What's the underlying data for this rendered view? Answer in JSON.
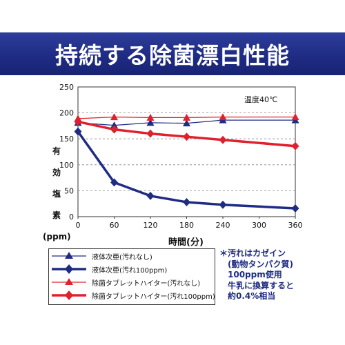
{
  "chart_data": {
    "type": "line",
    "title": "持続する除菌漂白性能",
    "xlabel": "時間(分)",
    "ylabel": "有効塩素(ppm)",
    "ylabel_lines": [
      "有",
      "効",
      "塩",
      "素",
      "(ppm)"
    ],
    "x": [
      0,
      60,
      120,
      180,
      240,
      300,
      360
    ],
    "xticks": [
      "0",
      "60",
      "120",
      "180",
      "240",
      "300",
      "360"
    ],
    "yticks": [
      "0",
      "50",
      "100",
      "150",
      "200",
      "250"
    ],
    "xlim": [
      0,
      360
    ],
    "ylim": [
      0,
      250
    ],
    "grid": "horizontal-dashed",
    "annotation": "温度40℃",
    "legend_position": "bottom-left",
    "series": [
      {
        "name": "液体次亜(汚れなし)",
        "color": "#1f2c84",
        "marker": "triangle",
        "line_width": "thin",
        "x": [
          0,
          60,
          120,
          180,
          240,
          360
        ],
        "values": [
          181,
          176,
          181,
          180,
          186,
          186
        ]
      },
      {
        "name": "液体次亜(汚れ100ppm)",
        "color": "#1f2c84",
        "marker": "diamond",
        "line_width": "thick",
        "x": [
          0,
          60,
          120,
          180,
          240,
          360
        ],
        "values": [
          164,
          66,
          40,
          28,
          23,
          16
        ]
      },
      {
        "name": "除菌タブレットハイター(汚れなし)",
        "color": "#e0202c",
        "marker": "triangle",
        "line_width": "thin",
        "x": [
          0,
          60,
          120,
          180,
          240,
          360
        ],
        "values": [
          189,
          192,
          191,
          191,
          192,
          192
        ]
      },
      {
        "name": "除菌タブレットハイター(汚れ100ppm)",
        "color": "#e0202c",
        "marker": "diamond",
        "line_width": "thick",
        "x": [
          0,
          60,
          120,
          180,
          240,
          360
        ],
        "values": [
          183,
          168,
          160,
          154,
          148,
          136
        ]
      }
    ],
    "note": [
      "＊汚れはカゼイン",
      "(動物タンパク質)",
      "100ppm使用",
      "牛乳に換算すると",
      "約0.4%相当"
    ]
  }
}
